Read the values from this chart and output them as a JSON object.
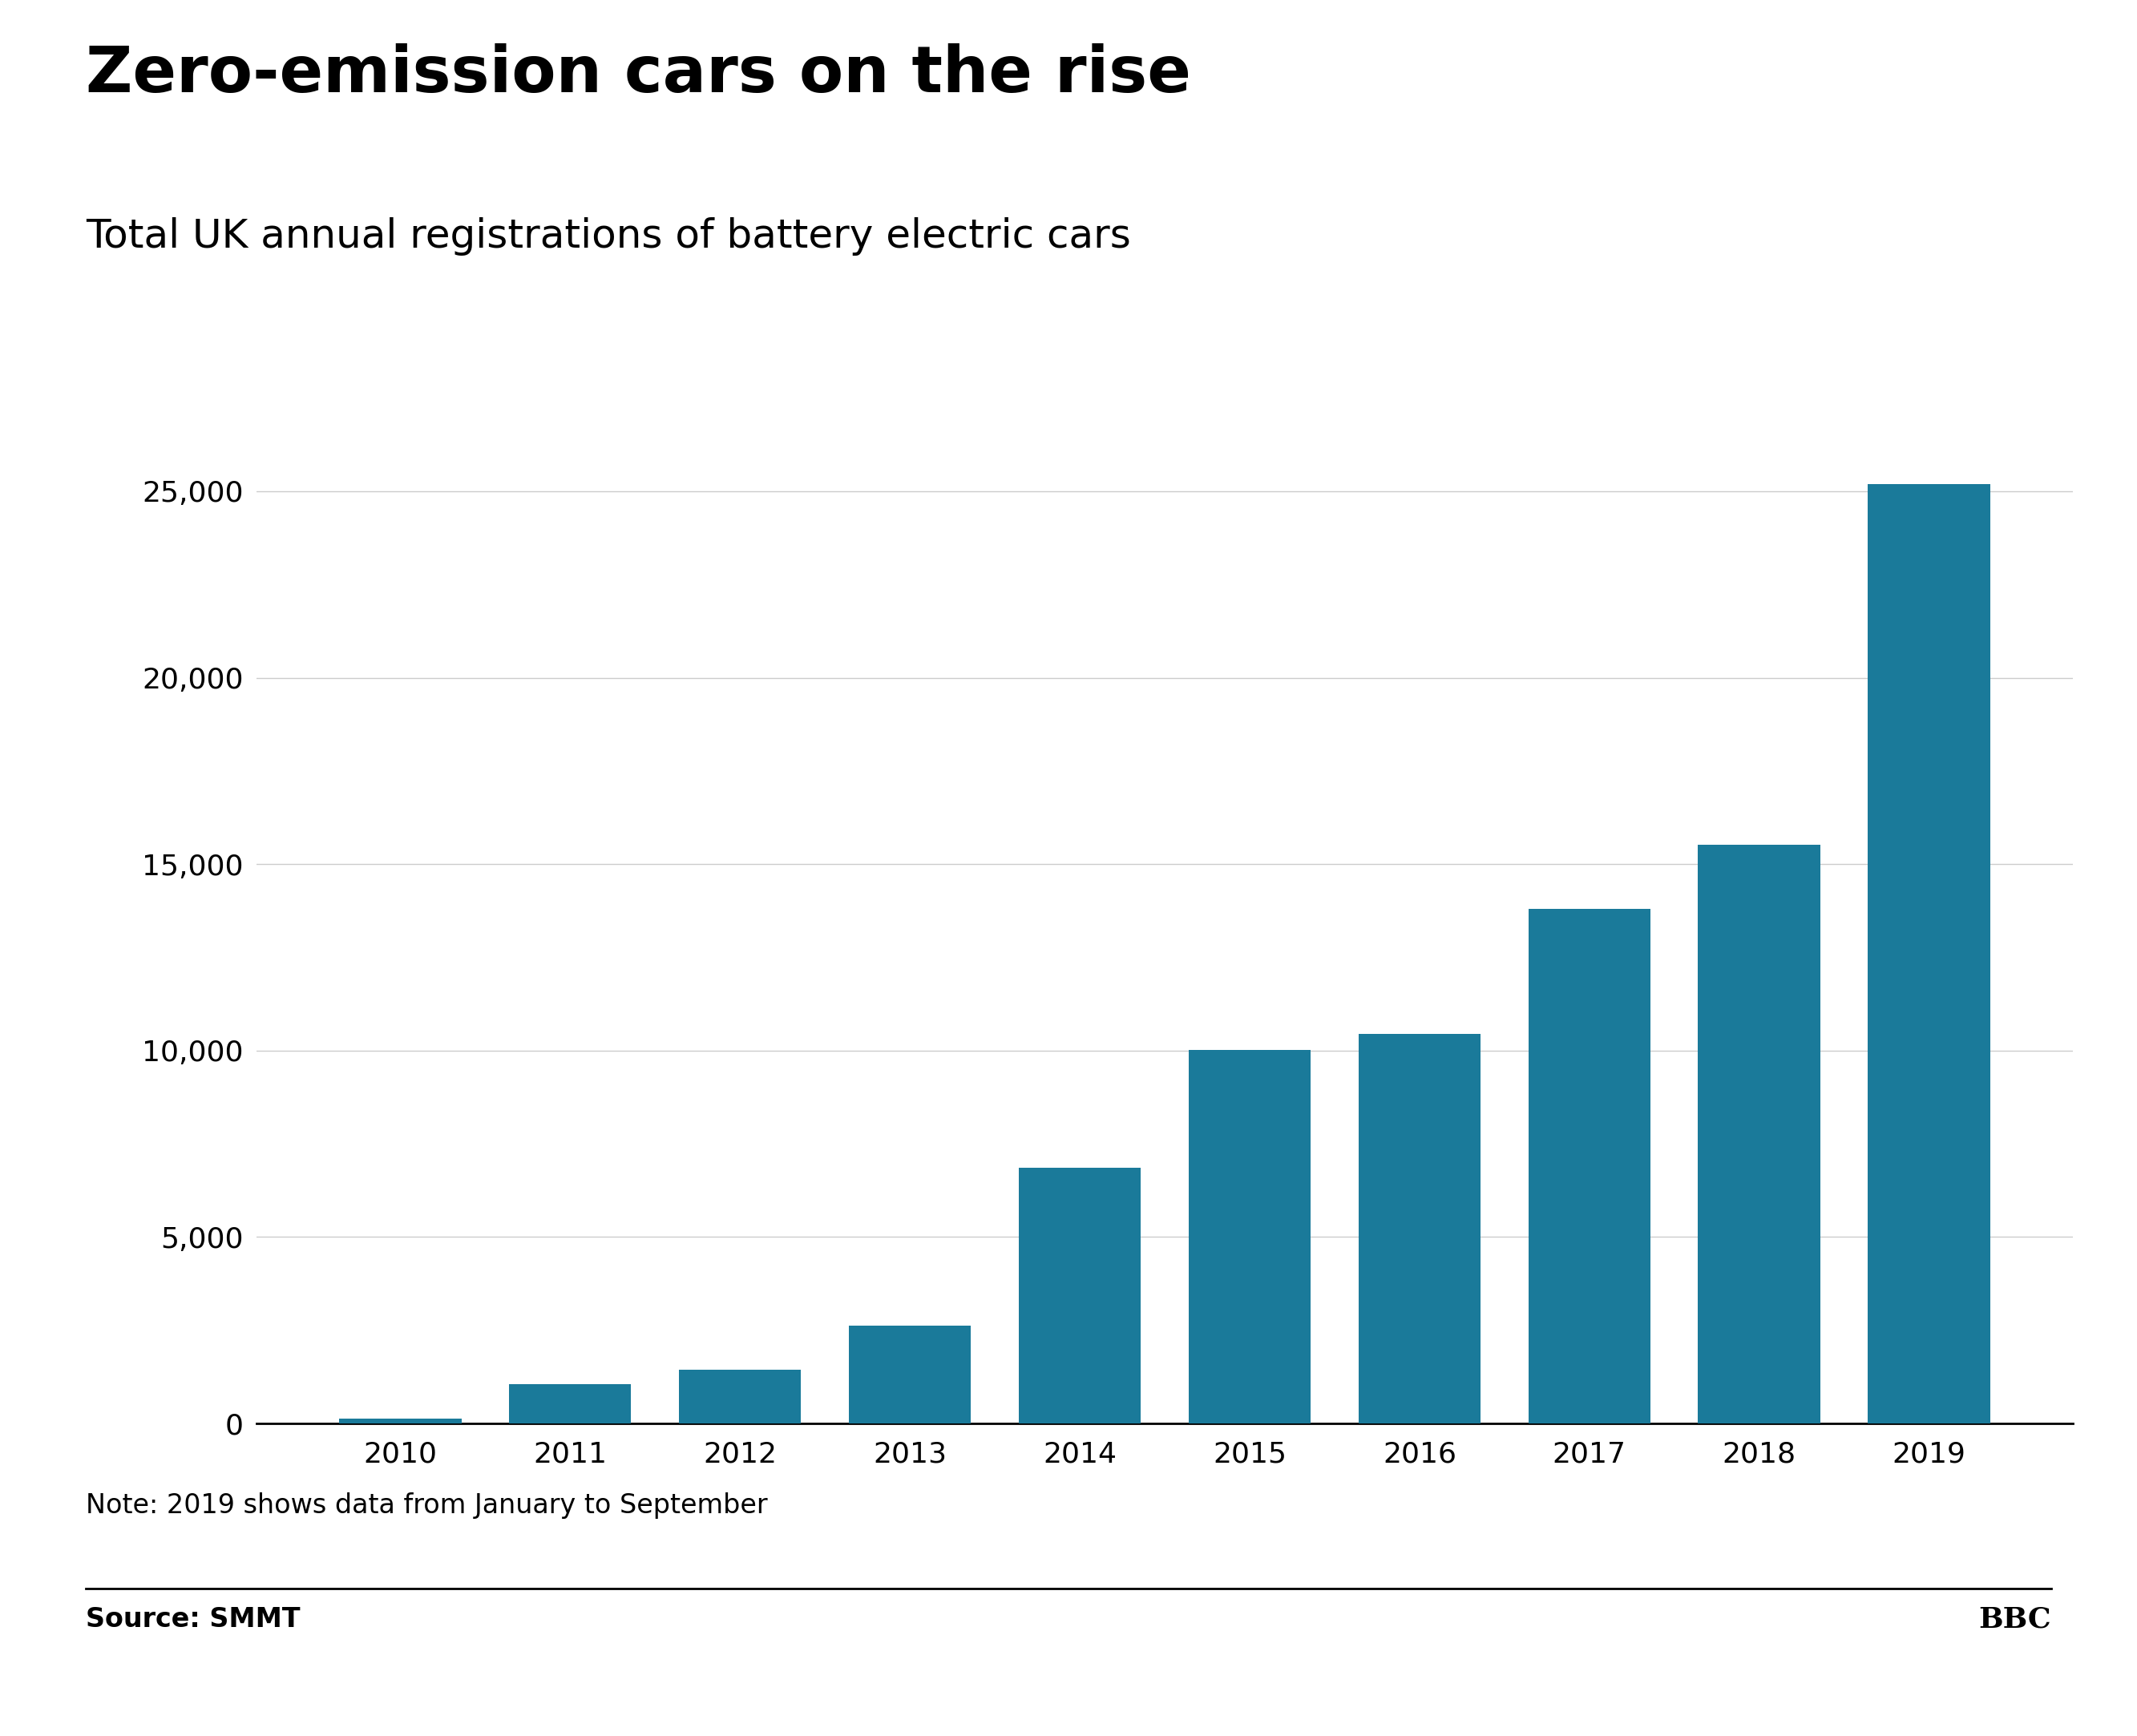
{
  "title": "Zero-emission cars on the rise",
  "subtitle": "Total UK annual registrations of battery electric cars",
  "note": "Note: 2019 shows data from January to September",
  "source": "Source: SMMT",
  "bbc_label": "BBC",
  "years": [
    2010,
    2011,
    2012,
    2013,
    2014,
    2015,
    2016,
    2017,
    2018,
    2019
  ],
  "values": [
    139,
    1052,
    1447,
    2634,
    6852,
    10021,
    10447,
    13807,
    15510,
    25197
  ],
  "bar_color": "#1a7a9a",
  "background_color": "#ffffff",
  "yticks": [
    0,
    5000,
    10000,
    15000,
    20000,
    25000
  ],
  "ylim": [
    0,
    27000
  ],
  "title_fontsize": 58,
  "subtitle_fontsize": 36,
  "tick_fontsize": 26,
  "note_fontsize": 24,
  "source_fontsize": 24,
  "bar_width": 0.72
}
